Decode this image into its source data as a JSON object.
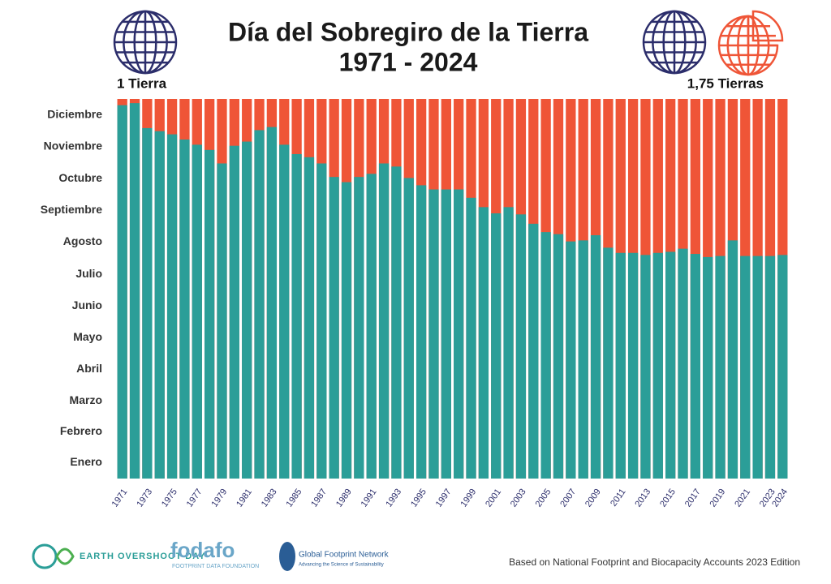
{
  "chart_data": {
    "type": "bar",
    "title": "Día del Sobregiro de la Tierra",
    "subtitle": "1971 - 2024",
    "left_label": "1 Tierra",
    "right_label": "1,75 Tierras",
    "categories": [
      "1971",
      null,
      "1973",
      null,
      "1975",
      null,
      "1977",
      null,
      "1979",
      null,
      "1981",
      null,
      "1983",
      null,
      "1985",
      null,
      "1987",
      null,
      "1989",
      null,
      "1991",
      null,
      "1993",
      null,
      "1995",
      null,
      "1997",
      null,
      "1999",
      null,
      "2001",
      null,
      "2003",
      null,
      "2005",
      null,
      "2007",
      null,
      "2009",
      null,
      "2011",
      null,
      "2013",
      null,
      "2015",
      null,
      "2017",
      null,
      "2019",
      null,
      "2021",
      null,
      "2023",
      "2024"
    ],
    "values": [
      359,
      361,
      337,
      334,
      331,
      326,
      321,
      316,
      303,
      320,
      324,
      335,
      338,
      321,
      312,
      309,
      303,
      290,
      285,
      290,
      293,
      303,
      300,
      289,
      282,
      278,
      278,
      278,
      270,
      261,
      255,
      261,
      254,
      245,
      237,
      235,
      228,
      229,
      234,
      222,
      217,
      217,
      215,
      217,
      218,
      221,
      216,
      213,
      214,
      229,
      214,
      214,
      214,
      215
    ],
    "color": "#2b9e98",
    "background_color": "#ef5537",
    "ylim": [
      0,
      365
    ],
    "yticks": [
      {
        "value": 15.5,
        "label": "Enero"
      },
      {
        "value": 45,
        "label": "Febrero"
      },
      {
        "value": 74.5,
        "label": "Marzo"
      },
      {
        "value": 105,
        "label": "Abril"
      },
      {
        "value": 135.5,
        "label": "Mayo"
      },
      {
        "value": 166,
        "label": "Junio"
      },
      {
        "value": 196.5,
        "label": "Julio"
      },
      {
        "value": 227.5,
        "label": "Agosto"
      },
      {
        "value": 258,
        "label": "Septiembre"
      },
      {
        "value": 288.5,
        "label": "Octubre"
      },
      {
        "value": 319,
        "label": "Noviembre"
      },
      {
        "value": 349.5,
        "label": "Diciembre"
      }
    ],
    "grid": false
  },
  "logos": {
    "eod": "EARTH OVERSHOOT DAY",
    "fodafo": "fodafo",
    "fodafo_sub": "FOOTPRINT DATA FOUNDATION",
    "gfn": "Global Footprint Network",
    "gfn_sub": "Advancing the Science of Sustainability"
  },
  "footer": "Based on National Footprint and Biocapacity Accounts 2023 Edition"
}
